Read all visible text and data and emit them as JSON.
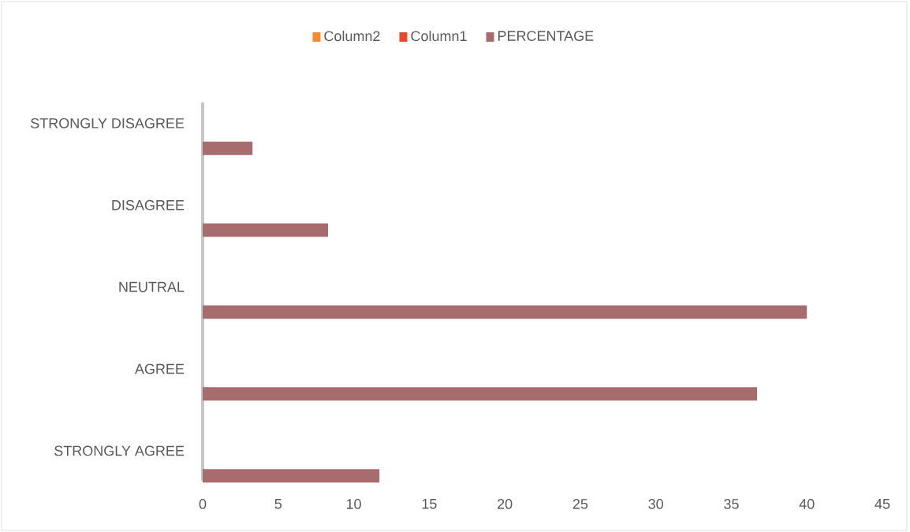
{
  "chart_data": {
    "type": "bar",
    "orientation": "horizontal",
    "categories": [
      "STRONGLY DISAGREE",
      "DISAGREE",
      "NEUTRAL",
      "AGREE",
      "STRONGLY AGREE"
    ],
    "series": [
      {
        "name": "Column2",
        "color": "#f28a2e",
        "values": [
          null,
          null,
          null,
          null,
          null
        ]
      },
      {
        "name": "Column1",
        "color": "#e5482a",
        "values": [
          null,
          null,
          null,
          null,
          null
        ]
      },
      {
        "name": "PERCENTAGE",
        "color": "#a86b6e",
        "values": [
          3.3,
          8.3,
          40,
          36.7,
          11.7
        ]
      }
    ],
    "xlim": [
      0,
      45
    ],
    "xticks": [
      0,
      5,
      10,
      15,
      20,
      25,
      30,
      35,
      40,
      45
    ],
    "grid": false,
    "legend": "top"
  }
}
